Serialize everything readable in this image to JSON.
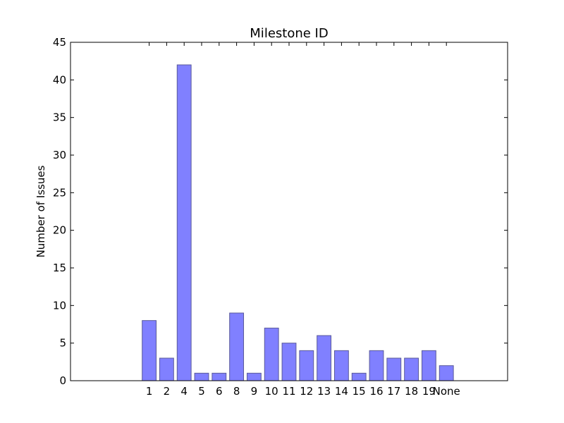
{
  "chart_data": {
    "type": "bar",
    "title": "Milestone ID",
    "xlabel": "",
    "ylabel": "Number of Issues",
    "categories": [
      "1",
      "2",
      "4",
      "5",
      "6",
      "8",
      "9",
      "10",
      "11",
      "12",
      "13",
      "14",
      "15",
      "16",
      "17",
      "18",
      "19",
      "None"
    ],
    "values": [
      8,
      3,
      42,
      1,
      1,
      9,
      1,
      7,
      5,
      4,
      6,
      4,
      1,
      4,
      3,
      3,
      4,
      2
    ],
    "ylim": [
      0,
      45
    ],
    "yticks": [
      "0",
      "5",
      "10",
      "15",
      "20",
      "25",
      "30",
      "35",
      "40",
      "45"
    ],
    "grid": false,
    "colors": {
      "bar_fill": "#8080ff",
      "bar_edge": "#5a5a9a"
    }
  }
}
